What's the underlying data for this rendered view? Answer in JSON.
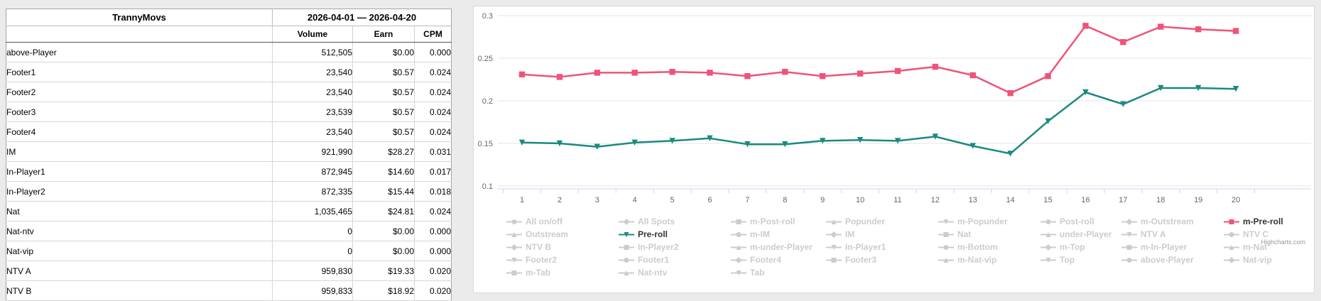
{
  "page": {
    "background": "#ebebeb"
  },
  "table": {
    "title": "TrannyMovs",
    "date_range": "2026-04-01 — 2026-04-20",
    "columns": [
      "Volume",
      "Earn",
      "CPM"
    ],
    "rows": [
      {
        "name": "above-Player",
        "volume": "512,505",
        "earn": "$0.00",
        "cpm": "0.000"
      },
      {
        "name": "Footer1",
        "volume": "23,540",
        "earn": "$0.57",
        "cpm": "0.024"
      },
      {
        "name": "Footer2",
        "volume": "23,540",
        "earn": "$0.57",
        "cpm": "0.024"
      },
      {
        "name": "Footer3",
        "volume": "23,539",
        "earn": "$0.57",
        "cpm": "0.024"
      },
      {
        "name": "Footer4",
        "volume": "23,540",
        "earn": "$0.57",
        "cpm": "0.024"
      },
      {
        "name": "IM",
        "volume": "921,990",
        "earn": "$28.27",
        "cpm": "0.031"
      },
      {
        "name": "In-Player1",
        "volume": "872,945",
        "earn": "$14.60",
        "cpm": "0.017"
      },
      {
        "name": "In-Player2",
        "volume": "872,335",
        "earn": "$15.44",
        "cpm": "0.018"
      },
      {
        "name": "Nat",
        "volume": "1,035,465",
        "earn": "$24.81",
        "cpm": "0.024"
      },
      {
        "name": "Nat-ntv",
        "volume": "0",
        "earn": "$0.00",
        "cpm": "0.000"
      },
      {
        "name": "Nat-vip",
        "volume": "0",
        "earn": "$0.00",
        "cpm": "0.000"
      },
      {
        "name": "NTV A",
        "volume": "959,830",
        "earn": "$19.33",
        "cpm": "0.020"
      },
      {
        "name": "NTV B",
        "volume": "959,833",
        "earn": "$18.92",
        "cpm": "0.020"
      }
    ]
  },
  "chart_data": {
    "type": "line",
    "title": "",
    "xlabel": "",
    "ylabel": "",
    "x": [
      1,
      2,
      3,
      4,
      5,
      6,
      7,
      8,
      9,
      10,
      11,
      12,
      13,
      14,
      15,
      16,
      17,
      18,
      19,
      20
    ],
    "ylim": [
      0.1,
      0.3
    ],
    "yticks": [
      0.1,
      0.15,
      0.2,
      0.25,
      0.3
    ],
    "grid": true,
    "legend_position": "bottom",
    "axis_label_color": "#666666",
    "axis_line_color": "#ccd6eb",
    "gridline_color": "#e6e6e6",
    "credit": "Highcharts.com",
    "series": [
      {
        "name": "Pre-roll",
        "color": "#1b8a80",
        "marker": "triangle-down",
        "values": [
          0.151,
          0.15,
          0.146,
          0.151,
          0.153,
          0.156,
          0.149,
          0.149,
          0.153,
          0.154,
          0.153,
          0.158,
          0.147,
          0.138,
          0.176,
          0.21,
          0.196,
          0.215,
          0.215,
          0.214
        ]
      },
      {
        "name": "m-Pre-roll",
        "color": "#f05379",
        "marker": "square",
        "values": [
          0.231,
          0.228,
          0.233,
          0.233,
          0.234,
          0.233,
          0.229,
          0.234,
          0.229,
          0.232,
          0.235,
          0.24,
          0.23,
          0.209,
          0.229,
          0.288,
          0.269,
          0.287,
          0.284,
          0.282
        ]
      }
    ],
    "legend": {
      "active_text_color": "#333333",
      "disabled_color": "#cccccc",
      "items": [
        {
          "label": "All on/off",
          "symbol": "circle",
          "enabled": false
        },
        {
          "label": "All Spots",
          "symbol": "diamond",
          "enabled": false
        },
        {
          "label": "m-Post-roll",
          "symbol": "square",
          "enabled": false
        },
        {
          "label": "Popunder",
          "symbol": "triangle",
          "enabled": false
        },
        {
          "label": "m-Popunder",
          "symbol": "triangle-down",
          "enabled": false
        },
        {
          "label": "Post-roll",
          "symbol": "circle",
          "enabled": false
        },
        {
          "label": "m-Outstream",
          "symbol": "diamond",
          "enabled": false
        },
        {
          "label": "m-Pre-roll",
          "symbol": "square",
          "enabled": true,
          "color": "#f05379"
        },
        {
          "label": "Outstream",
          "symbol": "triangle",
          "enabled": false
        },
        {
          "label": "Pre-roll",
          "symbol": "triangle-down",
          "enabled": true,
          "color": "#1b8a80"
        },
        {
          "label": "m-IM",
          "symbol": "circle",
          "enabled": false
        },
        {
          "label": "IM",
          "symbol": "diamond",
          "enabled": false
        },
        {
          "label": "Nat",
          "symbol": "square",
          "enabled": false
        },
        {
          "label": "under-Player",
          "symbol": "triangle",
          "enabled": false
        },
        {
          "label": "NTV A",
          "symbol": "triangle-down",
          "enabled": false
        },
        {
          "label": "NTV C",
          "symbol": "circle",
          "enabled": false
        },
        {
          "label": "NTV B",
          "symbol": "diamond",
          "enabled": false
        },
        {
          "label": "In-Player2",
          "symbol": "square",
          "enabled": false
        },
        {
          "label": "m-under-Player",
          "symbol": "triangle",
          "enabled": false
        },
        {
          "label": "In-Player1",
          "symbol": "triangle-down",
          "enabled": false
        },
        {
          "label": "m-Bottom",
          "symbol": "circle",
          "enabled": false
        },
        {
          "label": "m-Top",
          "symbol": "diamond",
          "enabled": false
        },
        {
          "label": "m-In-Player",
          "symbol": "square",
          "enabled": false
        },
        {
          "label": "m-Nat",
          "symbol": "triangle",
          "enabled": false
        },
        {
          "label": "Footer2",
          "symbol": "triangle-down",
          "enabled": false
        },
        {
          "label": "Footer1",
          "symbol": "circle",
          "enabled": false
        },
        {
          "label": "Footer4",
          "symbol": "diamond",
          "enabled": false
        },
        {
          "label": "Footer3",
          "symbol": "square",
          "enabled": false
        },
        {
          "label": "m-Nat-vip",
          "symbol": "triangle",
          "enabled": false
        },
        {
          "label": "Top",
          "symbol": "triangle-down",
          "enabled": false
        },
        {
          "label": "above-Player",
          "symbol": "circle",
          "enabled": false
        },
        {
          "label": "Nat-vip",
          "symbol": "diamond",
          "enabled": false
        },
        {
          "label": "m-Tab",
          "symbol": "square",
          "enabled": false
        },
        {
          "label": "Nat-ntv",
          "symbol": "triangle",
          "enabled": false
        },
        {
          "label": "Tab",
          "symbol": "triangle-down",
          "enabled": false
        }
      ]
    }
  }
}
